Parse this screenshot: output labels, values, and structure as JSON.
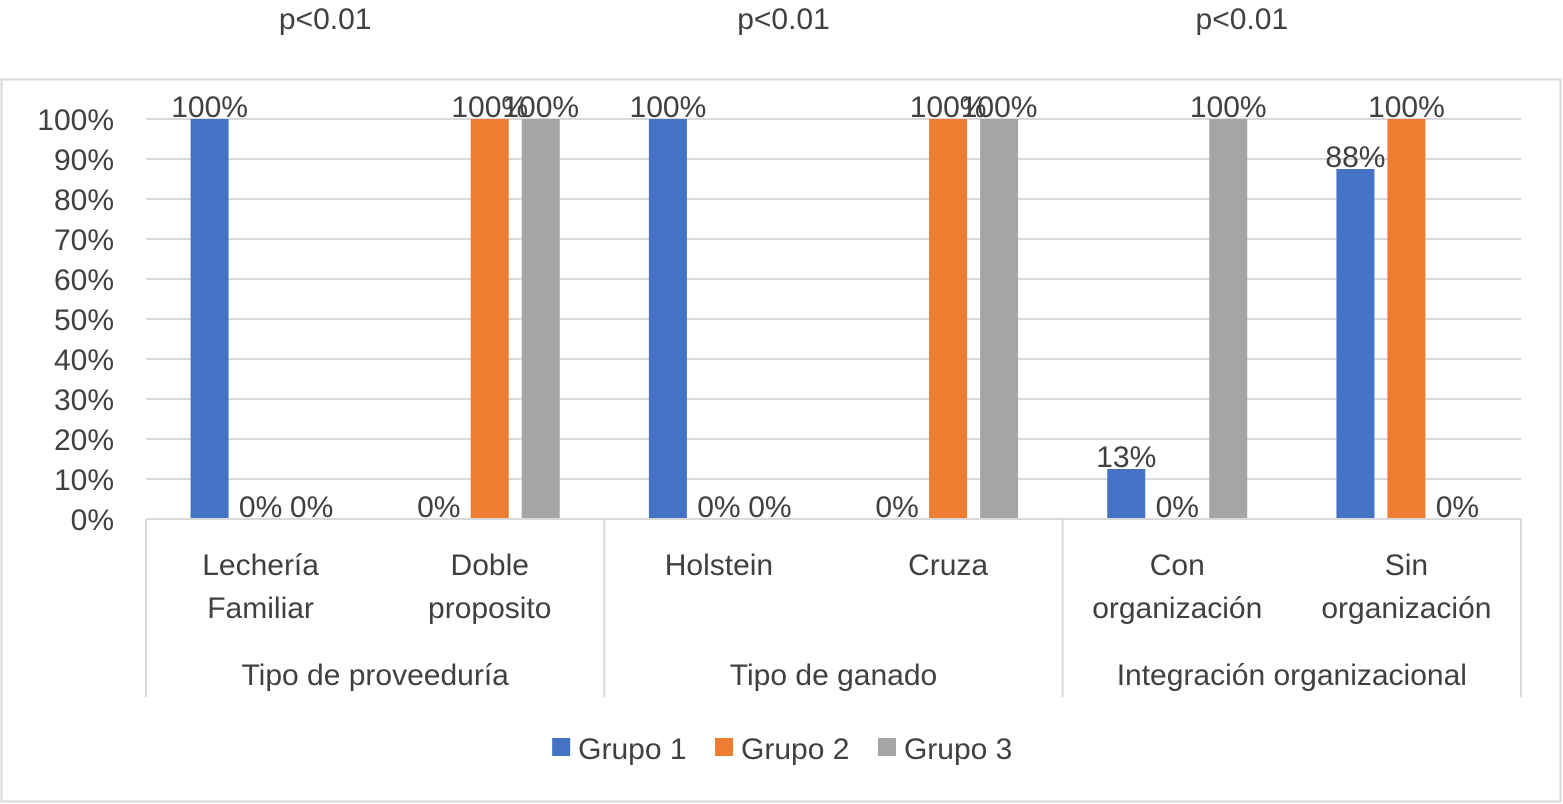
{
  "chart_data": {
    "type": "bar",
    "title": "",
    "xlabel": "",
    "ylabel": "",
    "ylim": [
      0,
      100
    ],
    "y_ticks": [
      "0%",
      "10%",
      "20%",
      "30%",
      "40%",
      "50%",
      "60%",
      "70%",
      "80%",
      "90%",
      "100%"
    ],
    "grid": true,
    "legend_position": "bottom",
    "groups": [
      {
        "label": "Tipo de proveeduría",
        "significance": "p<0.01",
        "categories": [
          "Lechería\nFamiliar",
          "Doble\nproposito"
        ]
      },
      {
        "label": "Tipo de ganado",
        "significance": "p<0.01",
        "categories": [
          "Holstein",
          "Cruza"
        ]
      },
      {
        "label": "Integración organizacional",
        "significance": "p<0.01",
        "categories": [
          "Con\norganización",
          "Sin\norganización"
        ]
      }
    ],
    "series": [
      {
        "name": "Grupo 1",
        "color": "#4472C4",
        "values": [
          100,
          0,
          100,
          0,
          12.5,
          87.5
        ],
        "labels": [
          "100%",
          "0%",
          "100%",
          "0%",
          "13%",
          "88%"
        ]
      },
      {
        "name": "Grupo 2",
        "color": "#ED7D31",
        "values": [
          0,
          100,
          0,
          100,
          0,
          100
        ],
        "labels": [
          "0%",
          "100%",
          "0%",
          "100%",
          "0%",
          "100%"
        ]
      },
      {
        "name": "Grupo 3",
        "color": "#A5A5A5",
        "values": [
          0,
          100,
          0,
          100,
          100,
          0
        ],
        "labels": [
          "0%",
          "100%",
          "0%",
          "100%",
          "100%",
          "0%"
        ]
      }
    ]
  }
}
